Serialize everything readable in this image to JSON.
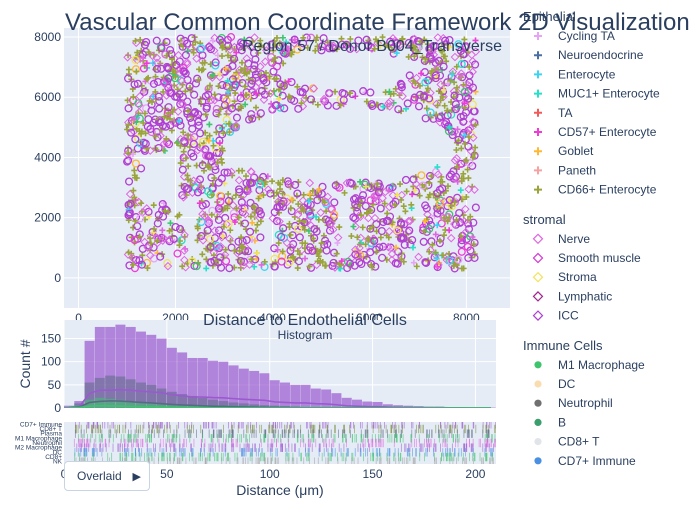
{
  "header": {
    "title": "Vascular Common Coordinate Framework 2D Visualization",
    "subtitle": "Region 57 / Donor B004_Transverse"
  },
  "colors": {
    "plot_bg": "#e5ecf6",
    "grid": "#ffffff",
    "font": "#2a3f5f",
    "purple": "#9b30ff",
    "olive": "#9aa43a"
  },
  "control": {
    "overlaid_label": "Overlaid",
    "caret_icon": "triangle-right-icon"
  },
  "legend": {
    "groups": [
      {
        "title": "Epithelial",
        "items": [
          {
            "name": "Cycling TA",
            "marker": "plus",
            "color": "#e7a4f5"
          },
          {
            "name": "Neuroendocrine",
            "marker": "plus",
            "color": "#4a6fa5"
          },
          {
            "name": "Enterocyte",
            "marker": "plus",
            "color": "#3ed3f0"
          },
          {
            "name": "MUC1+ Enterocyte",
            "marker": "plus",
            "color": "#26e0c9"
          },
          {
            "name": "TA",
            "marker": "plus",
            "color": "#f05a5a"
          },
          {
            "name": "CD57+ Enterocyte",
            "marker": "plus",
            "color": "#f03bd6"
          },
          {
            "name": "Goblet",
            "marker": "plus",
            "color": "#ffb833"
          },
          {
            "name": "Paneth",
            "marker": "plus",
            "color": "#f7a1a1"
          },
          {
            "name": "CD66+ Enterocyte",
            "marker": "plus",
            "color": "#9aa43a"
          }
        ]
      },
      {
        "title": "stromal",
        "items": [
          {
            "name": "Nerve",
            "marker": "diamond-open",
            "color": "#e066e0"
          },
          {
            "name": "Smooth muscle",
            "marker": "diamond-open",
            "color": "#d633d6"
          },
          {
            "name": "Stroma",
            "marker": "diamond-open",
            "color": "#f2e35c"
          },
          {
            "name": "Lymphatic",
            "marker": "diamond-open",
            "color": "#a3238f"
          },
          {
            "name": "ICC",
            "marker": "diamond-open",
            "color": "#b13fd1"
          }
        ]
      },
      {
        "title": "Immune Cells",
        "items": [
          {
            "name": "M1 Macrophage",
            "marker": "circle",
            "color": "#3ec46d"
          },
          {
            "name": "DC",
            "marker": "circle",
            "color": "#f9ddb0"
          },
          {
            "name": "Neutrophil",
            "marker": "circle",
            "color": "#707070"
          },
          {
            "name": "B",
            "marker": "circle",
            "color": "#3a9e6e"
          },
          {
            "name": "CD8+ T",
            "marker": "circle",
            "color": "#e1e4e8"
          },
          {
            "name": "CD7+ Immune",
            "marker": "circle",
            "color": "#4a90e2"
          }
        ]
      }
    ]
  },
  "chart_data": [
    {
      "type": "scatter",
      "xlim": [
        -300,
        8900
      ],
      "ylim": [
        -1000,
        8300
      ],
      "xticks": [
        0,
        2000,
        4000,
        6000,
        8000
      ],
      "yticks": [
        0,
        2000,
        4000,
        6000,
        8000
      ],
      "grid": true,
      "legend_placement": "right",
      "regions": [
        {
          "series": "CD66+ Enterocyte",
          "shape": "frame",
          "x": [
            1000,
            8200
          ],
          "y": [
            300,
            8000
          ]
        },
        {
          "series": "ICC",
          "shape": "frame",
          "x": [
            1000,
            8200
          ],
          "y": [
            300,
            8000
          ]
        },
        {
          "series": "ICC",
          "shape": "blocks",
          "x": [
            2500,
            8100
          ],
          "y": [
            300,
            2900
          ]
        },
        {
          "series": "ICC",
          "shape": "band",
          "x": [
            1500,
            3800
          ],
          "y": [
            4200,
            6500
          ]
        }
      ]
    },
    {
      "type": "histogram",
      "title": "Distance to Endothelial Cells",
      "subtitle": "Histogram",
      "xlabel": "Distance (μm)",
      "ylabel": "Count #",
      "xlim": [
        0,
        210
      ],
      "ylim": [
        0,
        190
      ],
      "xticks": [
        0,
        50,
        100,
        150,
        200
      ],
      "yticks": [
        0,
        50,
        100,
        150
      ],
      "barmode": "overlay",
      "bin_width": 5,
      "series": [
        {
          "name": "ICC",
          "color": "#9b59d0",
          "values": [
            5,
            15,
            145,
            175,
            175,
            180,
            175,
            165,
            158,
            150,
            130,
            120,
            108,
            108,
            102,
            100,
            92,
            85,
            80,
            75,
            60,
            55,
            50,
            50,
            42,
            40,
            32,
            22,
            18,
            14,
            13,
            8,
            6,
            5,
            4,
            3,
            3,
            2,
            2,
            1,
            1,
            1
          ]
        },
        {
          "name": "Neutrophil",
          "color": "#5a6a85",
          "values": [
            2,
            10,
            55,
            65,
            70,
            68,
            62,
            55,
            50,
            42,
            35,
            30,
            26,
            22,
            18,
            15,
            12,
            10,
            8,
            6,
            5,
            4,
            3,
            2,
            2,
            1,
            1,
            1,
            1,
            0,
            0,
            0,
            0,
            0,
            0,
            0,
            0,
            0,
            0,
            0,
            0,
            0
          ]
        },
        {
          "name": "M1 Macrophage",
          "color": "#3ec46d",
          "values": [
            2,
            6,
            18,
            22,
            20,
            18,
            15,
            12,
            10,
            8,
            6,
            5,
            4,
            3,
            2,
            2,
            1,
            1,
            1,
            0,
            0,
            0,
            0,
            0,
            0,
            0,
            0,
            0,
            0,
            0,
            0,
            0,
            0,
            0,
            0,
            0,
            0,
            0,
            0,
            0,
            0,
            0
          ]
        }
      ],
      "rug_labels": [
        "CD7+ Immune",
        "CD8+ T",
        "Plasma",
        "M1 Macrophage",
        "Neutrophil",
        "M2 Macrophage",
        "DC",
        "CD8+",
        "NK"
      ]
    }
  ]
}
